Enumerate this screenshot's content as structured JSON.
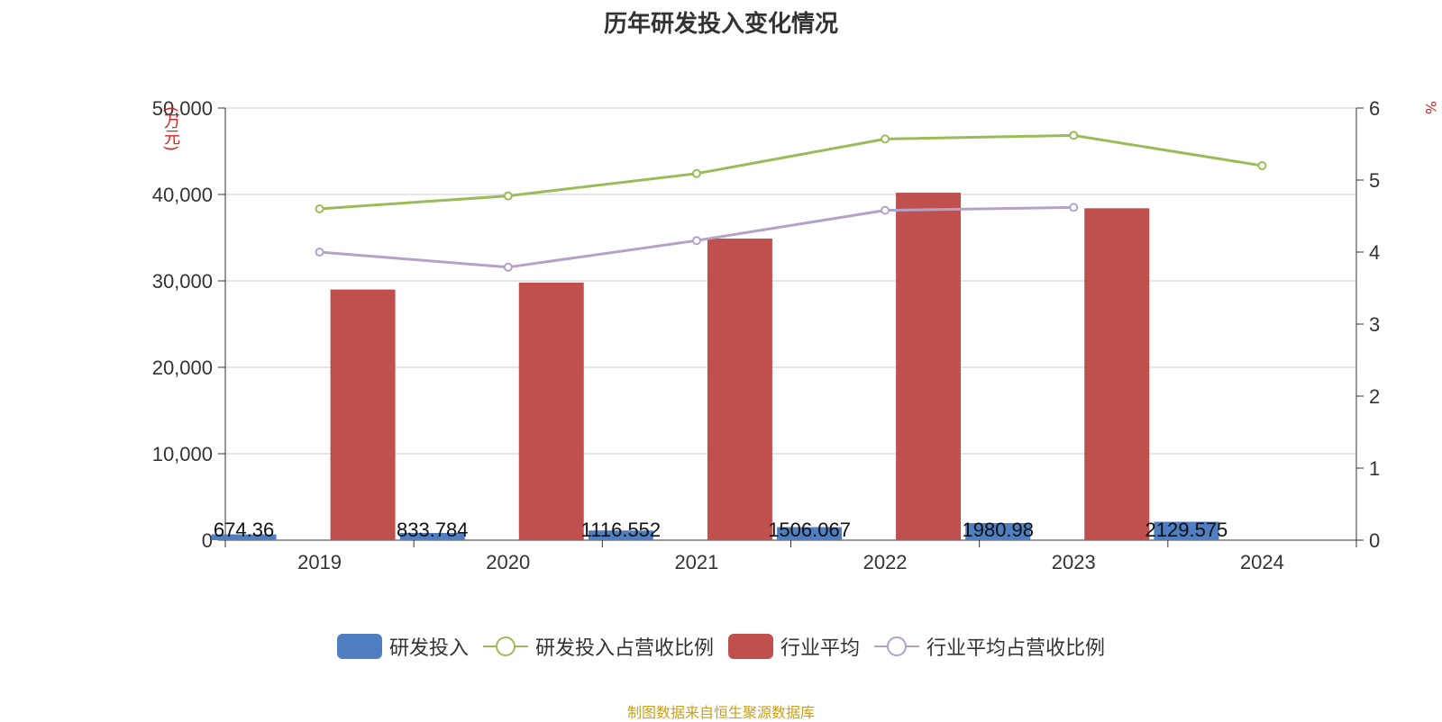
{
  "chart_data": {
    "type": "bar",
    "title": "历年研发投入变化情况",
    "categories": [
      "2019",
      "2020",
      "2021",
      "2022",
      "2023",
      "2024"
    ],
    "series": [
      {
        "name": "研发投入",
        "kind": "bar",
        "axis": "left",
        "color": "#4f7ec1",
        "values": [
          674.36,
          833.784,
          1116.552,
          1506.067,
          1980.98,
          2129.575
        ],
        "labels": [
          "674.36",
          "833.784",
          "1116.552",
          "1506.067",
          "1980.98",
          "2129.575"
        ]
      },
      {
        "name": "研发投入占营收比例",
        "kind": "line",
        "axis": "right",
        "color": "#9bbb59",
        "values": [
          4.6,
          4.78,
          5.09,
          5.57,
          5.62,
          5.2
        ]
      },
      {
        "name": "行业平均",
        "kind": "bar",
        "axis": "left",
        "color": "#c0504d",
        "values": [
          29000,
          29800,
          34900,
          40200,
          38400,
          null
        ]
      },
      {
        "name": "行业平均占营收比例",
        "kind": "line",
        "axis": "right",
        "color": "#b3a2c7",
        "values": [
          4.0,
          3.79,
          4.16,
          4.58,
          4.62,
          null
        ]
      }
    ],
    "y_left": {
      "unit": "(万元)",
      "min": 0,
      "max": 50000,
      "ticks": [
        "0",
        "10,000",
        "20,000",
        "30,000",
        "40,000",
        "50,000"
      ]
    },
    "y_right": {
      "unit": "%",
      "min": 0,
      "max": 6,
      "ticks": [
        "0",
        "1",
        "2",
        "3",
        "4",
        "5",
        "6"
      ]
    },
    "grid": true,
    "legend_position": "bottom-center"
  },
  "source_note": "制图数据来自恒生聚源数据库"
}
